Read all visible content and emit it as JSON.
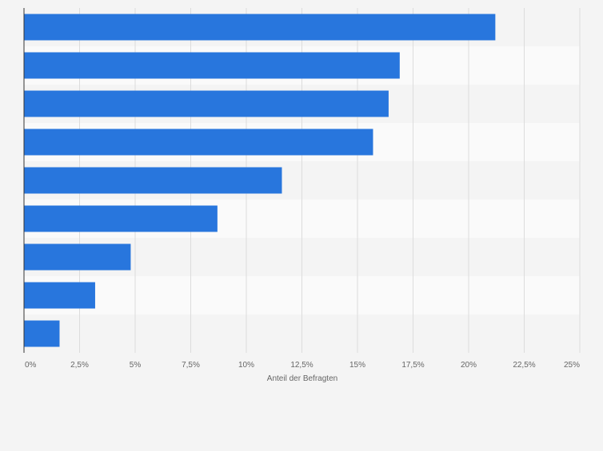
{
  "colors": {
    "background": "#f4f4f4",
    "band_light": "#fafafa",
    "band_dark": "#f4f4f4",
    "bar": "#2876dd",
    "grid": "#dcdcdc",
    "axis": "#333333",
    "tick_text": "#666666"
  },
  "chart_data": {
    "type": "bar",
    "orientation": "horizontal",
    "categories": [
      "",
      "",
      "",
      "",
      "",
      "",
      "",
      "",
      ""
    ],
    "values": [
      21.2,
      16.9,
      16.4,
      15.7,
      11.6,
      8.7,
      4.8,
      3.2,
      1.6
    ],
    "xlim": [
      0,
      25
    ],
    "xticks": [
      0,
      2.5,
      5,
      7.5,
      10,
      12.5,
      15,
      17.5,
      20,
      22.5,
      25
    ],
    "xtick_labels": [
      "0%",
      "2,5%",
      "5%",
      "7,5%",
      "10%",
      "12,5%",
      "15%",
      "17,5%",
      "20%",
      "22,5%",
      "25%"
    ],
    "xlabel": "Anteil der Befragten",
    "ylabel": "",
    "title": "",
    "grid": true
  }
}
